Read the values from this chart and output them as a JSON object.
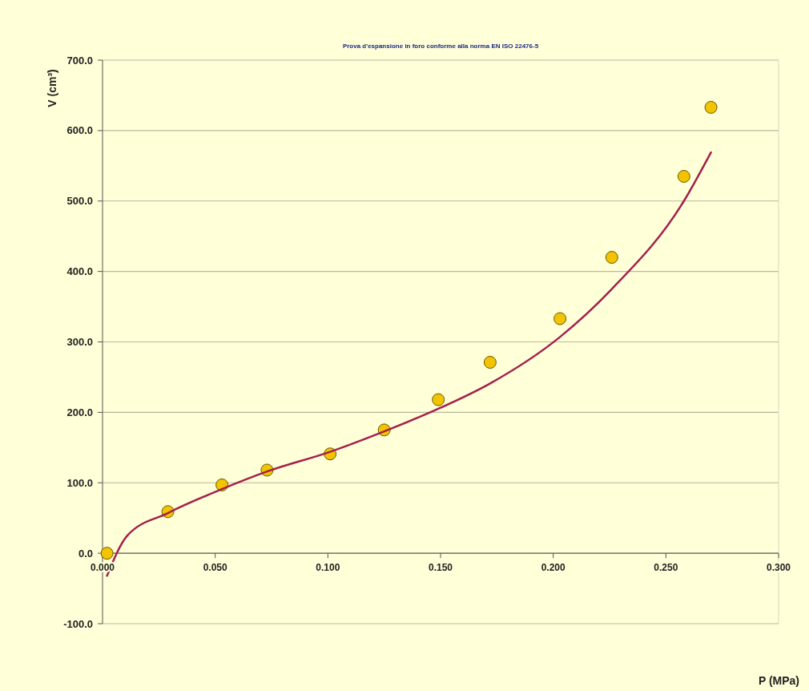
{
  "chart_data": {
    "type": "scatter",
    "title": "Prova d'espansione in foro conforme alla norma EN ISO 22476-5",
    "xlabel": "P (MPa)",
    "ylabel": "V (cm³)",
    "xlim": [
      0,
      0.3
    ],
    "xticks": [
      {
        "value": 0,
        "label": "0.000"
      },
      {
        "value": 0.05,
        "label": "0.050"
      },
      {
        "value": 0.1,
        "label": "0.100"
      },
      {
        "value": 0.15,
        "label": "0.150"
      },
      {
        "value": 0.2,
        "label": "0.200"
      },
      {
        "value": 0.25,
        "label": "0.250"
      },
      {
        "value": 0.3,
        "label": "0.300"
      }
    ],
    "ylim": [
      -100,
      700
    ],
    "yticks": [
      {
        "value": -100,
        "label": "-100.0"
      },
      {
        "value": 0,
        "label": "0.0"
      },
      {
        "value": 100,
        "label": "100.0"
      },
      {
        "value": 200,
        "label": "200.0"
      },
      {
        "value": 300,
        "label": "300.0"
      },
      {
        "value": 400,
        "label": "400.0"
      },
      {
        "value": 500,
        "label": "500.0"
      },
      {
        "value": 600,
        "label": "600.0"
      },
      {
        "value": 700,
        "label": "700.0"
      }
    ],
    "grid": "y",
    "series": [
      {
        "color": "#f2c400",
        "marker": "circle",
        "x": [
          0.002,
          0.029,
          0.053,
          0.073,
          0.101,
          0.125,
          0.149,
          0.172,
          0.203,
          0.226,
          0.258,
          0.27
        ],
        "values": [
          0,
          59,
          97,
          118,
          141,
          175,
          218,
          271,
          333,
          420,
          535,
          633
        ]
      },
      {
        "type": "line",
        "color": "#a3204c",
        "marker": "none",
        "line_style": "solid",
        "x": [
          0.002,
          0.011,
          0.029,
          0.053,
          0.073,
          0.101,
          0.125,
          0.149,
          0.172,
          0.203,
          0.226,
          0.258,
          0.27
        ],
        "values": [
          -32,
          25,
          57,
          91,
          116,
          144,
          173,
          205,
          241,
          307,
          375,
          500,
          569
        ]
      }
    ]
  }
}
